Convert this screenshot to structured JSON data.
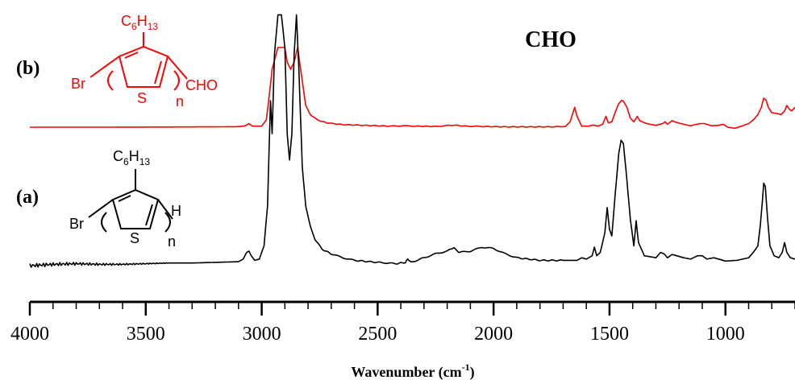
{
  "chart_data": {
    "type": "line",
    "title": "",
    "xlabel": "Wavenumber (cm",
    "xlabel_sup": "-1",
    "xlabel_close": ")",
    "ylabel": "",
    "xlim": [
      4000,
      700
    ],
    "x_reversed": true,
    "grid": false,
    "xticks": [
      4000,
      3500,
      3000,
      2500,
      2000,
      1500,
      1000
    ],
    "annotation": "CHO",
    "series": [
      {
        "name": "(b)",
        "color": "#ff0000",
        "baseline": 0.0,
        "points": [
          [
            4000,
            0
          ],
          [
            3700,
            0
          ],
          [
            3400,
            0.005
          ],
          [
            3200,
            0.01
          ],
          [
            3100,
            0.015
          ],
          [
            3070,
            0.04
          ],
          [
            3055,
            0.1
          ],
          [
            3040,
            0.03
          ],
          [
            3000,
            0.03
          ],
          [
            2980,
            0.2
          ],
          [
            2965,
            1.0
          ],
          [
            2955,
            1.6
          ],
          [
            2930,
            2.2
          ],
          [
            2900,
            2.2
          ],
          [
            2890,
            1.8
          ],
          [
            2875,
            1.6
          ],
          [
            2860,
            1.8
          ],
          [
            2845,
            2.2
          ],
          [
            2830,
            1.5
          ],
          [
            2810,
            0.6
          ],
          [
            2790,
            0.35
          ],
          [
            2760,
            0.2
          ],
          [
            2720,
            0.12
          ],
          [
            2650,
            0.07
          ],
          [
            2550,
            0.05
          ],
          [
            2450,
            0.03
          ],
          [
            2370,
            0.04
          ],
          [
            2350,
            0.03
          ],
          [
            2250,
            0.02
          ],
          [
            2170,
            0.06
          ],
          [
            2130,
            0.03
          ],
          [
            2050,
            0.02
          ],
          [
            1950,
            0.01
          ],
          [
            1850,
            0.01
          ],
          [
            1750,
            0.01
          ],
          [
            1690,
            0.02
          ],
          [
            1670,
            0.15
          ],
          [
            1650,
            0.55
          ],
          [
            1640,
            0.3
          ],
          [
            1620,
            0.03
          ],
          [
            1590,
            0.03
          ],
          [
            1570,
            0.06
          ],
          [
            1550,
            0.03
          ],
          [
            1530,
            0.08
          ],
          [
            1515,
            0.3
          ],
          [
            1505,
            0.12
          ],
          [
            1490,
            0.15
          ],
          [
            1470,
            0.5
          ],
          [
            1460,
            0.65
          ],
          [
            1448,
            0.74
          ],
          [
            1440,
            0.72
          ],
          [
            1425,
            0.55
          ],
          [
            1410,
            0.25
          ],
          [
            1395,
            0.15
          ],
          [
            1380,
            0.3
          ],
          [
            1370,
            0.18
          ],
          [
            1340,
            0.1
          ],
          [
            1300,
            0.05
          ],
          [
            1270,
            0.1
          ],
          [
            1260,
            0.15
          ],
          [
            1250,
            0.08
          ],
          [
            1230,
            0.18
          ],
          [
            1215,
            0.14
          ],
          [
            1180,
            0.08
          ],
          [
            1150,
            0.04
          ],
          [
            1110,
            0.1
          ],
          [
            1090,
            0.1
          ],
          [
            1060,
            0.04
          ],
          [
            1030,
            0.05
          ],
          [
            1010,
            0.08
          ],
          [
            990,
            0.0
          ],
          [
            960,
            -0.03
          ],
          [
            930,
            0.03
          ],
          [
            900,
            0.1
          ],
          [
            880,
            0.2
          ],
          [
            860,
            0.35
          ],
          [
            845,
            0.55
          ],
          [
            835,
            0.8
          ],
          [
            825,
            0.75
          ],
          [
            815,
            0.55
          ],
          [
            800,
            0.4
          ],
          [
            780,
            0.38
          ],
          [
            760,
            0.35
          ],
          [
            745,
            0.45
          ],
          [
            735,
            0.6
          ],
          [
            725,
            0.5
          ],
          [
            715,
            0.45
          ],
          [
            700,
            0.55
          ]
        ]
      },
      {
        "name": "(a)",
        "color": "#000000",
        "baseline": 0.0,
        "points": [
          [
            4000,
            0
          ],
          [
            3900,
            0.02
          ],
          [
            3800,
            0.03
          ],
          [
            3700,
            0.02
          ],
          [
            3600,
            0.02
          ],
          [
            3500,
            0.03
          ],
          [
            3400,
            0.04
          ],
          [
            3300,
            0.04
          ],
          [
            3200,
            0.05
          ],
          [
            3100,
            0.06
          ],
          [
            3080,
            0.1
          ],
          [
            3065,
            0.2
          ],
          [
            3055,
            0.22
          ],
          [
            3045,
            0.15
          ],
          [
            3030,
            0.08
          ],
          [
            3010,
            0.1
          ],
          [
            2990,
            0.3
          ],
          [
            2975,
            0.9
          ],
          [
            2962,
            2.5
          ],
          [
            2955,
            2.0
          ],
          [
            2945,
            3.2
          ],
          [
            2930,
            3.8
          ],
          [
            2915,
            3.8
          ],
          [
            2900,
            3.3
          ],
          [
            2890,
            2.0
          ],
          [
            2880,
            1.6
          ],
          [
            2870,
            2.0
          ],
          [
            2860,
            3.2
          ],
          [
            2850,
            3.8
          ],
          [
            2840,
            3.0
          ],
          [
            2825,
            1.5
          ],
          [
            2810,
            0.9
          ],
          [
            2790,
            0.6
          ],
          [
            2770,
            0.4
          ],
          [
            2740,
            0.25
          ],
          [
            2700,
            0.18
          ],
          [
            2650,
            0.12
          ],
          [
            2600,
            0.08
          ],
          [
            2500,
            0.05
          ],
          [
            2420,
            0.03
          ],
          [
            2380,
            0.05
          ],
          [
            2370,
            0.1
          ],
          [
            2355,
            0.05
          ],
          [
            2300,
            0.12
          ],
          [
            2250,
            0.18
          ],
          [
            2200,
            0.22
          ],
          [
            2170,
            0.28
          ],
          [
            2150,
            0.2
          ],
          [
            2100,
            0.22
          ],
          [
            2050,
            0.28
          ],
          [
            2000,
            0.26
          ],
          [
            1950,
            0.18
          ],
          [
            1900,
            0.12
          ],
          [
            1800,
            0.08
          ],
          [
            1700,
            0.08
          ],
          [
            1640,
            0.08
          ],
          [
            1620,
            0.12
          ],
          [
            1600,
            0.1
          ],
          [
            1575,
            0.15
          ],
          [
            1565,
            0.28
          ],
          [
            1555,
            0.15
          ],
          [
            1540,
            0.2
          ],
          [
            1520,
            0.5
          ],
          [
            1510,
            0.88
          ],
          [
            1500,
            0.55
          ],
          [
            1490,
            0.45
          ],
          [
            1475,
            1.1
          ],
          [
            1460,
            1.7
          ],
          [
            1450,
            1.9
          ],
          [
            1440,
            1.85
          ],
          [
            1425,
            1.3
          ],
          [
            1410,
            0.7
          ],
          [
            1395,
            0.3
          ],
          [
            1385,
            0.68
          ],
          [
            1375,
            0.35
          ],
          [
            1350,
            0.15
          ],
          [
            1300,
            0.12
          ],
          [
            1280,
            0.2
          ],
          [
            1265,
            0.18
          ],
          [
            1250,
            0.12
          ],
          [
            1230,
            0.17
          ],
          [
            1210,
            0.15
          ],
          [
            1180,
            0.12
          ],
          [
            1150,
            0.1
          ],
          [
            1120,
            0.15
          ],
          [
            1100,
            0.15
          ],
          [
            1080,
            0.1
          ],
          [
            1050,
            0.12
          ],
          [
            1030,
            0.1
          ],
          [
            1000,
            0.07
          ],
          [
            950,
            0.08
          ],
          [
            900,
            0.12
          ],
          [
            880,
            0.2
          ],
          [
            860,
            0.3
          ],
          [
            850,
            0.6
          ],
          [
            840,
            1.0
          ],
          [
            835,
            1.25
          ],
          [
            828,
            1.2
          ],
          [
            818,
            0.7
          ],
          [
            808,
            0.3
          ],
          [
            790,
            0.15
          ],
          [
            770,
            0.12
          ],
          [
            755,
            0.2
          ],
          [
            745,
            0.35
          ],
          [
            735,
            0.2
          ],
          [
            720,
            0.12
          ],
          [
            700,
            0.1
          ]
        ]
      }
    ],
    "structures": {
      "b": {
        "substituent": "C",
        "sub1": "6",
        "mid": "H",
        "sub2": "13",
        "halide": "Br",
        "hetero": "S",
        "repeat": "n",
        "endgroup": "CHO"
      },
      "a": {
        "substituent": "C",
        "sub1": "6",
        "mid": "H",
        "sub2": "13",
        "halide": "Br",
        "hetero": "S",
        "repeat": "n",
        "endgroup": "H"
      }
    }
  }
}
